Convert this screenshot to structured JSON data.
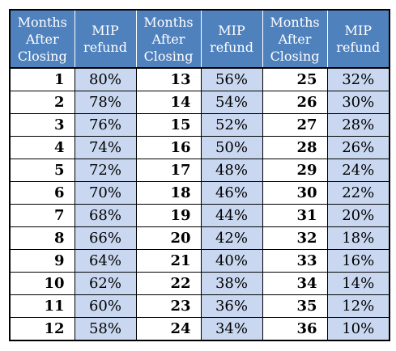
{
  "headers": {
    "months": [
      "Months",
      "After",
      "Closing"
    ],
    "refund": [
      "MIP",
      "refund"
    ]
  },
  "rows": [
    [
      {
        "month": "1",
        "refund": "80%"
      },
      {
        "month": "13",
        "refund": "56%"
      },
      {
        "month": "25",
        "refund": "32%"
      }
    ],
    [
      {
        "month": "2",
        "refund": "78%"
      },
      {
        "month": "14",
        "refund": "54%"
      },
      {
        "month": "26",
        "refund": "30%"
      }
    ],
    [
      {
        "month": "3",
        "refund": "76%"
      },
      {
        "month": "15",
        "refund": "52%"
      },
      {
        "month": "27",
        "refund": "28%"
      }
    ],
    [
      {
        "month": "4",
        "refund": "74%"
      },
      {
        "month": "16",
        "refund": "50%"
      },
      {
        "month": "28",
        "refund": "26%"
      }
    ],
    [
      {
        "month": "5",
        "refund": "72%"
      },
      {
        "month": "17",
        "refund": "48%"
      },
      {
        "month": "29",
        "refund": "24%"
      }
    ],
    [
      {
        "month": "6",
        "refund": "70%"
      },
      {
        "month": "18",
        "refund": "46%"
      },
      {
        "month": "30",
        "refund": "22%"
      }
    ],
    [
      {
        "month": "7",
        "refund": "68%"
      },
      {
        "month": "19",
        "refund": "44%"
      },
      {
        "month": "31",
        "refund": "20%"
      }
    ],
    [
      {
        "month": "8",
        "refund": "66%"
      },
      {
        "month": "20",
        "refund": "42%"
      },
      {
        "month": "32",
        "refund": "18%"
      }
    ],
    [
      {
        "month": "9",
        "refund": "64%"
      },
      {
        "month": "21",
        "refund": "40%"
      },
      {
        "month": "33",
        "refund": "16%"
      }
    ],
    [
      {
        "month": "10",
        "refund": "62%"
      },
      {
        "month": "22",
        "refund": "38%"
      },
      {
        "month": "34",
        "refund": "14%"
      }
    ],
    [
      {
        "month": "11",
        "refund": "60%"
      },
      {
        "month": "23",
        "refund": "36%"
      },
      {
        "month": "35",
        "refund": "12%"
      }
    ],
    [
      {
        "month": "12",
        "refund": "58%"
      },
      {
        "month": "24",
        "refund": "34%"
      },
      {
        "month": "36",
        "refund": "10%"
      }
    ]
  ],
  "colors": {
    "header_bg": "#4f81bd",
    "header_text": "#ffffff",
    "refund_cell_bg": "#c9d8f0",
    "month_cell_bg": "#ffffff"
  }
}
